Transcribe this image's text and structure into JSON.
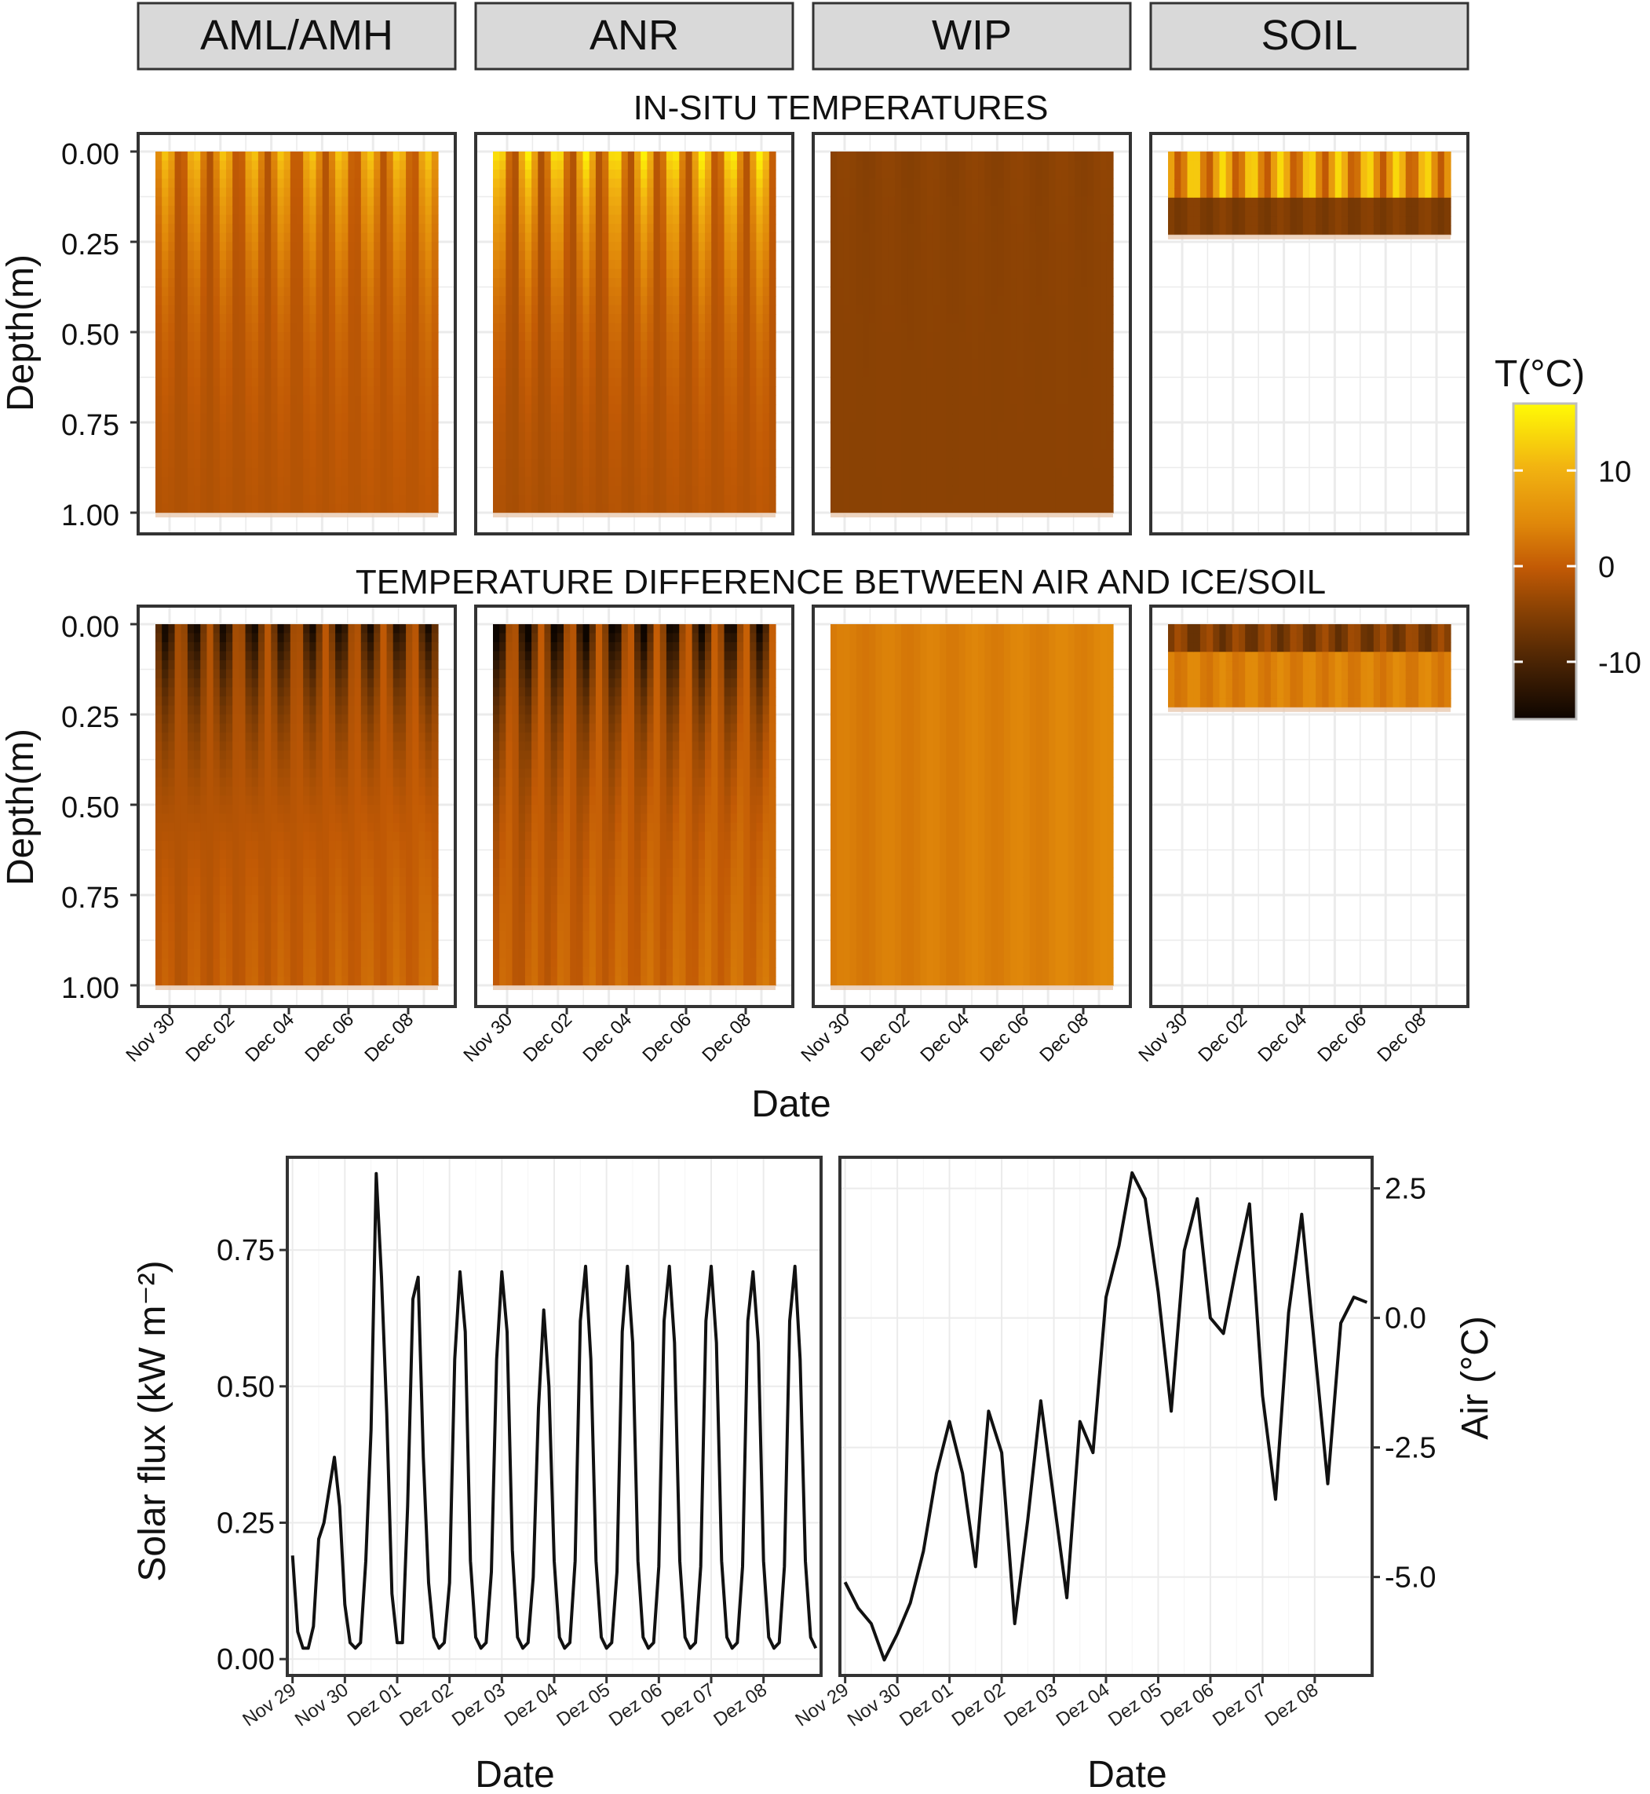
{
  "strips": [
    "AML/AMH",
    "ANR",
    "WIP",
    "SOIL"
  ],
  "top_titles": [
    "IN-SITU TEMPERATURES",
    "TEMPERATURE DIFFERENCE BETWEEN AIR AND ICE/SOIL"
  ],
  "depth_axis": {
    "title": "Depth(m)",
    "ticks": [
      "0.00",
      "0.25",
      "0.50",
      "0.75",
      "1.00"
    ]
  },
  "date_axis": {
    "title": "Date",
    "ticks": [
      "Nov 30",
      "Dec 02",
      "Dec 04",
      "Dec 06",
      "Dec 08"
    ]
  },
  "legend": {
    "title": "T(°C)",
    "ticks": [
      "10",
      "0",
      "-10"
    ],
    "range": [
      -16,
      17
    ],
    "tick_values": [
      10,
      0,
      -10
    ]
  },
  "colors": {
    "cold": "#0d0500",
    "mid": "#c25a05",
    "warm": "#fffb05",
    "strip_bg": "#d9d9d9",
    "line": "#111111",
    "grid": "#ebebeb"
  },
  "chart_data": [
    {
      "type": "heatmap",
      "title": "IN-SITU TEMPERATURES",
      "facets": [
        "AML/AMH",
        "ANR",
        "WIP",
        "SOIL"
      ],
      "xlabel": "Date",
      "ylabel": "Depth(m)",
      "x_ticks": [
        "Nov 30",
        "Dec 02",
        "Dec 04",
        "Dec 06",
        "Dec 08"
      ],
      "ylim": [
        0,
        1
      ],
      "max_depth": [
        1.0,
        1.0,
        1.0,
        0.23
      ],
      "value_ranges": [
        [
          -6,
          12
        ],
        [
          -8,
          16
        ],
        [
          -6,
          -2
        ],
        [
          -10,
          14
        ]
      ]
    },
    {
      "type": "heatmap",
      "title": "TEMPERATURE DIFFERENCE BETWEEN AIR AND ICE/SOIL",
      "facets": [
        "AML/AMH",
        "ANR",
        "WIP",
        "SOIL"
      ],
      "xlabel": "Date",
      "ylabel": "Depth(m)",
      "x_ticks": [
        "Nov 30",
        "Dec 02",
        "Dec 04",
        "Dec 06",
        "Dec 08"
      ],
      "ylim": [
        0,
        1
      ],
      "max_depth": [
        1.0,
        1.0,
        1.0,
        0.23
      ],
      "value_ranges": [
        [
          -15,
          5
        ],
        [
          -16,
          6
        ],
        [
          -2,
          6
        ],
        [
          -12,
          7
        ]
      ]
    },
    {
      "type": "line",
      "xlabel": "Date",
      "ylabel": "Solar flux (kW  m⁻²)",
      "x_ticks": [
        "Nov 29",
        "Nov 30",
        "Dez 01",
        "Dez 02",
        "Dez 03",
        "Dez 04",
        "Dez 05",
        "Dez 06",
        "Dez 07",
        "Dez 08"
      ],
      "y_ticks": [
        "0.00",
        "0.25",
        "0.50",
        "0.75"
      ],
      "xlim": [
        -0.1,
        10.1
      ],
      "ylim": [
        -0.03,
        0.92
      ],
      "x": [
        0.0,
        0.1,
        0.2,
        0.3,
        0.4,
        0.5,
        0.6,
        0.7,
        0.8,
        0.9,
        1.0,
        1.1,
        1.2,
        1.3,
        1.4,
        1.5,
        1.6,
        1.7,
        1.8,
        1.9,
        2.0,
        2.1,
        2.2,
        2.3,
        2.4,
        2.5,
        2.6,
        2.7,
        2.8,
        2.9,
        3.0,
        3.1,
        3.2,
        3.3,
        3.4,
        3.5,
        3.6,
        3.7,
        3.8,
        3.9,
        4.0,
        4.1,
        4.2,
        4.3,
        4.4,
        4.5,
        4.6,
        4.7,
        4.8,
        4.9,
        5.0,
        5.1,
        5.2,
        5.3,
        5.4,
        5.5,
        5.6,
        5.7,
        5.8,
        5.9,
        6.0,
        6.1,
        6.2,
        6.3,
        6.4,
        6.5,
        6.6,
        6.7,
        6.8,
        6.9,
        7.0,
        7.1,
        7.2,
        7.3,
        7.4,
        7.5,
        7.6,
        7.7,
        7.8,
        7.9,
        8.0,
        8.1,
        8.2,
        8.3,
        8.4,
        8.5,
        8.6,
        8.7,
        8.8,
        8.9,
        9.0,
        9.1,
        9.2,
        9.3,
        9.4,
        9.5,
        9.6,
        9.7,
        9.8,
        9.9,
        10.0
      ],
      "values": [
        0.19,
        0.05,
        0.02,
        0.02,
        0.06,
        0.22,
        0.25,
        0.31,
        0.37,
        0.28,
        0.1,
        0.03,
        0.02,
        0.03,
        0.18,
        0.42,
        0.89,
        0.7,
        0.45,
        0.12,
        0.03,
        0.03,
        0.28,
        0.66,
        0.7,
        0.37,
        0.14,
        0.04,
        0.02,
        0.03,
        0.14,
        0.55,
        0.71,
        0.6,
        0.18,
        0.04,
        0.02,
        0.03,
        0.16,
        0.55,
        0.71,
        0.6,
        0.2,
        0.04,
        0.02,
        0.03,
        0.15,
        0.46,
        0.64,
        0.5,
        0.18,
        0.04,
        0.02,
        0.03,
        0.18,
        0.62,
        0.72,
        0.55,
        0.18,
        0.04,
        0.02,
        0.03,
        0.16,
        0.6,
        0.72,
        0.58,
        0.18,
        0.04,
        0.02,
        0.03,
        0.17,
        0.62,
        0.72,
        0.58,
        0.18,
        0.04,
        0.02,
        0.03,
        0.17,
        0.62,
        0.72,
        0.58,
        0.18,
        0.04,
        0.02,
        0.03,
        0.17,
        0.62,
        0.71,
        0.58,
        0.18,
        0.04,
        0.02,
        0.03,
        0.17,
        0.62,
        0.72,
        0.55,
        0.18,
        0.04,
        0.02
      ]
    },
    {
      "type": "line",
      "xlabel": "Date",
      "ylabel": "Air (°C)",
      "y_axis_position": "right",
      "x_ticks": [
        "Nov 29",
        "Nov 30",
        "Dez 01",
        "Dez 02",
        "Dez 03",
        "Dez 04",
        "Dez 05",
        "Dez 06",
        "Dez 07",
        "Dez 08"
      ],
      "y_ticks": [
        "2.5",
        "0.0",
        "-2.5",
        "-5.0"
      ],
      "xlim": [
        -0.1,
        10.1
      ],
      "ylim": [
        -6.9,
        3.1
      ],
      "x": [
        0.0,
        0.25,
        0.5,
        0.75,
        1.0,
        1.25,
        1.5,
        1.75,
        2.0,
        2.25,
        2.5,
        2.75,
        3.0,
        3.25,
        3.5,
        3.75,
        4.0,
        4.25,
        4.5,
        4.75,
        5.0,
        5.25,
        5.5,
        5.75,
        6.0,
        6.25,
        6.5,
        6.75,
        7.0,
        7.25,
        7.5,
        7.75,
        8.0,
        8.25,
        8.5,
        8.75,
        9.0,
        9.25,
        9.5,
        9.75,
        10.0
      ],
      "values": [
        -5.1,
        -5.6,
        -5.9,
        -6.6,
        -6.1,
        -5.5,
        -4.5,
        -3.0,
        -2.0,
        -3.0,
        -4.8,
        -1.8,
        -2.6,
        -5.9,
        -3.9,
        -1.6,
        -3.5,
        -5.4,
        -2.0,
        -2.6,
        0.4,
        1.4,
        2.8,
        2.3,
        0.5,
        -1.8,
        1.3,
        2.3,
        0.0,
        -0.3,
        1.0,
        2.2,
        -1.5,
        -3.5,
        0.1,
        2.0,
        -0.6,
        -3.2,
        -0.1,
        0.4,
        0.3
      ]
    }
  ]
}
